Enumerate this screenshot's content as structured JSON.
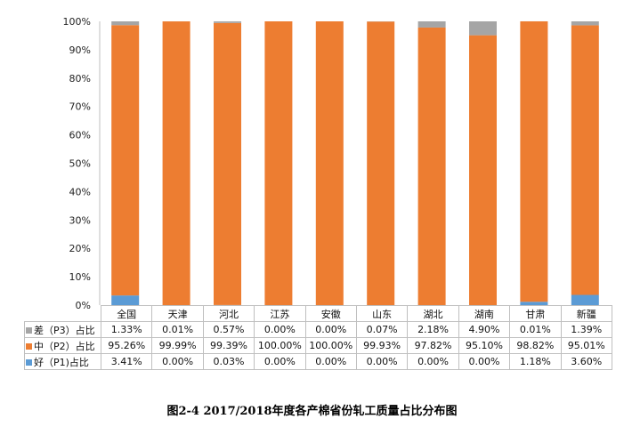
{
  "chart_data": {
    "type": "bar",
    "stacked": true,
    "title": "图2-4 2017/2018年度各产棉省份轧工质量占比分布图",
    "categories": [
      "全国",
      "天津",
      "河北",
      "江苏",
      "安徽",
      "山东",
      "湖北",
      "湖南",
      "甘肃",
      "新疆"
    ],
    "yticks": [
      "0%",
      "10%",
      "20%",
      "30%",
      "40%",
      "50%",
      "60%",
      "70%",
      "80%",
      "90%",
      "100%"
    ],
    "ylim": [
      0,
      100
    ],
    "series": [
      {
        "name": "好（P1)占比",
        "color": "#5B9BD5",
        "values": [
          3.41,
          0,
          0.03,
          0,
          0,
          0,
          0,
          0,
          1.18,
          3.6
        ],
        "labels": [
          "3.41%",
          "0.00%",
          "0.03%",
          "0.00%",
          "0.00%",
          "0.00%",
          "0.00%",
          "0.00%",
          "1.18%",
          "3.60%"
        ]
      },
      {
        "name": "中（P2）占比",
        "color": "#ED7D31",
        "values": [
          95.26,
          99.99,
          99.39,
          100,
          100,
          99.93,
          97.82,
          95.1,
          98.82,
          95.01
        ],
        "labels": [
          "95.26%",
          "99.99%",
          "99.39%",
          "100.00%",
          "100.00%",
          "99.93%",
          "97.82%",
          "95.10%",
          "98.82%",
          "95.01%"
        ]
      },
      {
        "name": "差（P3）占比",
        "color": "#A5A5A5",
        "values": [
          1.33,
          0.01,
          0.57,
          0,
          0,
          0.07,
          2.18,
          4.9,
          0.01,
          1.39
        ],
        "labels": [
          "1.33%",
          "0.01%",
          "0.57%",
          "0.00%",
          "0.00%",
          "0.07%",
          "2.18%",
          "4.90%",
          "0.01%",
          "1.39%"
        ]
      }
    ],
    "table_row_order": [
      2,
      1,
      0
    ]
  }
}
